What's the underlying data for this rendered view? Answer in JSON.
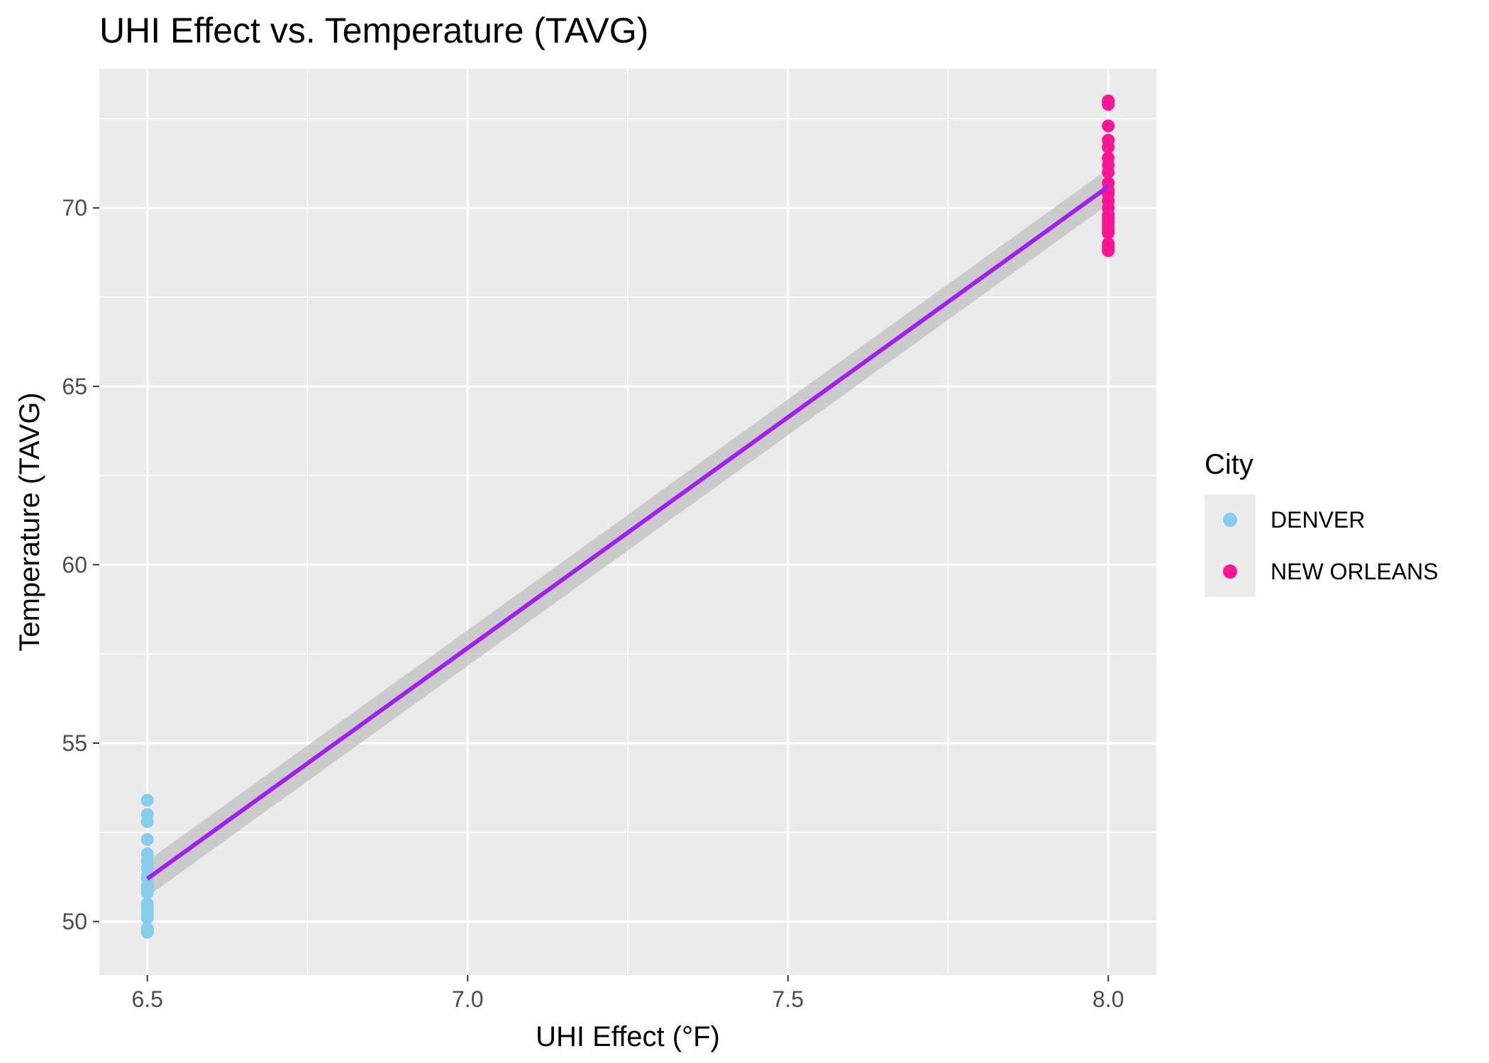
{
  "chart_data": {
    "type": "scatter",
    "title": "UHI Effect vs. Temperature (TAVG)",
    "xlabel": "UHI Effect (°F)",
    "ylabel": "Temperature (TAVG)",
    "xlim": [
      6.425,
      8.075
    ],
    "ylim": [
      48.5,
      73.9
    ],
    "x_ticks": [
      "6.5",
      "7.0",
      "7.5",
      "8.0"
    ],
    "x_tick_values": [
      6.5,
      7.0,
      7.5,
      8.0
    ],
    "x_minor_values": [
      6.75,
      7.25,
      7.75
    ],
    "y_ticks": [
      "50",
      "55",
      "60",
      "65",
      "70"
    ],
    "y_tick_values": [
      50,
      55,
      60,
      65,
      70
    ],
    "y_minor_values": [
      52.5,
      57.5,
      62.5,
      67.5,
      72.5
    ],
    "grid": true,
    "panel_background": "#ebebeb",
    "legend": {
      "title": "City",
      "placement": "right",
      "entries": [
        {
          "label": "DENVER",
          "color": "#87ceeb"
        },
        {
          "label": "NEW ORLEANS",
          "color": "#ff1493"
        }
      ]
    },
    "series": [
      {
        "name": "DENVER",
        "color": "#87ceeb",
        "x": [
          6.5,
          6.5,
          6.5,
          6.5,
          6.5,
          6.5,
          6.5,
          6.5,
          6.5,
          6.5,
          6.5,
          6.5,
          6.5,
          6.5,
          6.5,
          6.5,
          6.5,
          6.5,
          6.5,
          6.5
        ],
        "y": [
          53.4,
          53.0,
          52.8,
          52.3,
          51.9,
          51.7,
          51.5,
          51.3,
          51.2,
          51.0,
          50.9,
          50.8,
          50.5,
          50.4,
          50.3,
          50.2,
          50.1,
          49.8,
          49.7,
          49.7
        ]
      },
      {
        "name": "NEW ORLEANS",
        "color": "#ff1493",
        "x": [
          8.0,
          8.0,
          8.0,
          8.0,
          8.0,
          8.0,
          8.0,
          8.0,
          8.0,
          8.0,
          8.0,
          8.0,
          8.0,
          8.0,
          8.0,
          8.0,
          8.0,
          8.0,
          8.0,
          8.0,
          8.0,
          8.0
        ],
        "y": [
          73.0,
          72.9,
          72.3,
          71.9,
          71.7,
          71.4,
          71.0,
          70.7,
          70.4,
          70.2,
          70.0,
          69.8,
          69.7,
          69.6,
          69.5,
          69.4,
          69.3,
          69.0,
          68.9,
          68.8,
          70.5,
          71.2
        ]
      }
    ],
    "regression": {
      "color": "#a020f0",
      "band_color": "#c0c0c0",
      "x": [
        6.5,
        8.0
      ],
      "y": [
        51.2,
        70.6
      ],
      "band_lower": [
        50.7,
        70.1
      ],
      "band_upper": [
        51.7,
        71.1
      ]
    }
  }
}
